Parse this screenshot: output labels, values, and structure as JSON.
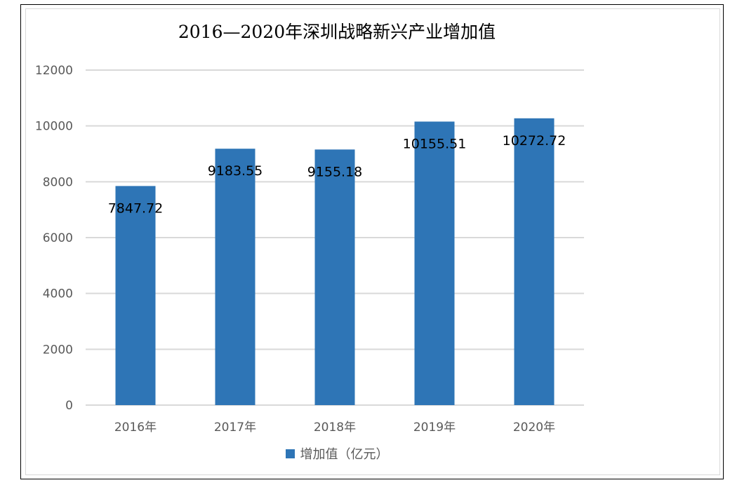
{
  "chart_data": {
    "type": "bar",
    "title": "2016—2020年深圳战略新兴产业增加值",
    "categories": [
      "2016年",
      "2017年",
      "2018年",
      "2019年",
      "2020年"
    ],
    "series": [
      {
        "name": "增加值（亿元）",
        "values": [
          7847.72,
          9183.55,
          9155.18,
          10155.51,
          10272.72
        ],
        "data_labels": [
          "7847.72",
          "9183.55",
          "9155.18",
          "10155.51",
          "10272.72"
        ],
        "color": "#2e75b6"
      }
    ],
    "xlabel": "",
    "ylabel": "",
    "ylim": [
      0,
      12000
    ],
    "yticks": [
      "0",
      "2000",
      "4000",
      "6000",
      "8000",
      "10000",
      "12000"
    ],
    "grid": true,
    "legend": "bottom",
    "grid_color": "#d9d9d9"
  }
}
